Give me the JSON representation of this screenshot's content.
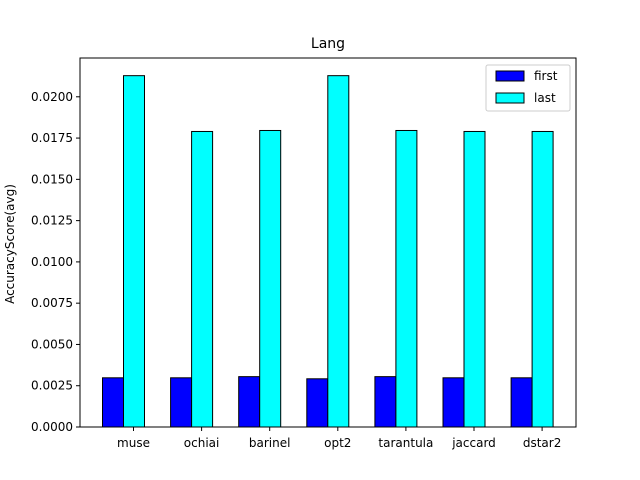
{
  "chart_data": {
    "type": "bar",
    "title": "Lang",
    "xlabel": "",
    "ylabel": "AccuracyScore(avg)",
    "categories": [
      "muse",
      "ochiai",
      "barinel",
      "opt2",
      "tarantula",
      "jaccard",
      "dstar2"
    ],
    "series": [
      {
        "name": "first",
        "color": "#0000ff",
        "values": [
          0.00298,
          0.00298,
          0.00305,
          0.00292,
          0.00305,
          0.00298,
          0.00298
        ]
      },
      {
        "name": "last",
        "color": "#00ffff",
        "values": [
          0.02128,
          0.0179,
          0.01796,
          0.02128,
          0.01796,
          0.0179,
          0.0179
        ]
      }
    ],
    "ylim": [
      0,
      0.02235
    ],
    "yticks": [
      "0.0000",
      "0.0025",
      "0.0050",
      "0.0075",
      "0.0100",
      "0.0125",
      "0.0150",
      "0.0175",
      "0.0200"
    ],
    "legend_position": "top-right",
    "grid": false
  }
}
